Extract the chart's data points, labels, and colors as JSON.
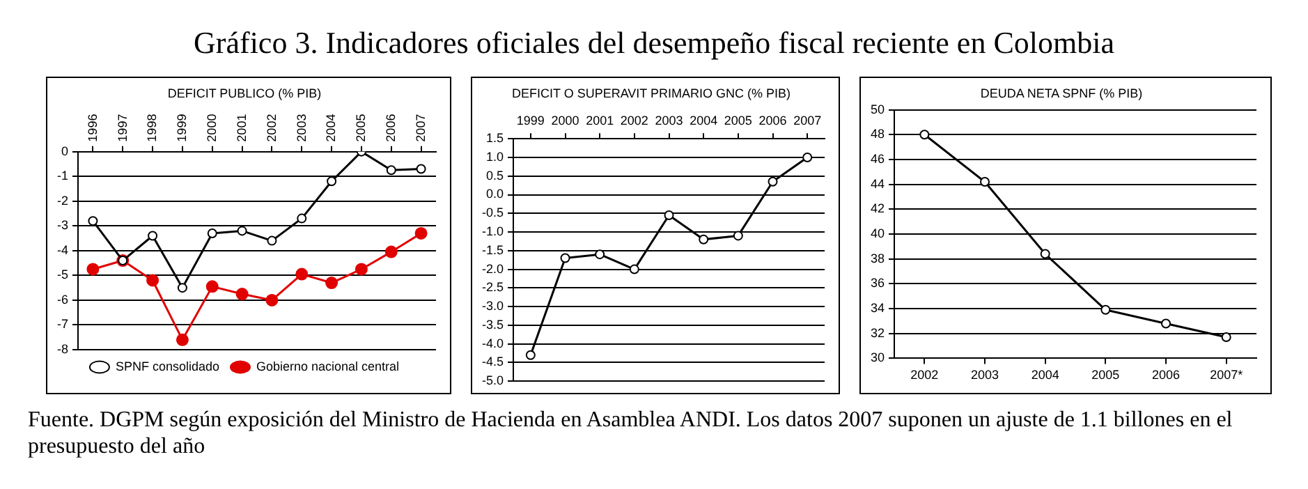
{
  "chart_data": [
    {
      "type": "line",
      "title": "DEFICIT PUBLICO (% PIB)",
      "annotations": [
        "Gráfico 3. Indicadores oficiales del desempeño fiscal reciente en Colombia",
        "Fuente. DGPM según exposición del Ministro de Hacienda en Asamblea ANDI. Los datos 2007 suponen un ajuste de 1.1 billones en el presupuesto del año"
      ],
      "categories": [
        "1996",
        "1997",
        "1998",
        "1999",
        "2000",
        "2001",
        "2002",
        "2003",
        "2004",
        "2005",
        "2006",
        "2007"
      ],
      "series": [
        {
          "name": "SPNF consolidado",
          "color": "#000000",
          "values": [
            -2.8,
            -4.4,
            -3.4,
            -5.5,
            -3.3,
            -3.2,
            -3.6,
            -2.7,
            -1.2,
            0.0,
            -0.75,
            -0.7
          ]
        },
        {
          "name": "Gobierno nacional central",
          "color": "#e00000",
          "values": [
            -4.75,
            -4.4,
            -5.2,
            -7.6,
            -5.45,
            -5.75,
            -6.0,
            -4.95,
            -5.3,
            -4.75,
            -4.05,
            -3.3
          ]
        }
      ],
      "ylim": [
        -8,
        0
      ],
      "yticks": [
        -8,
        -7,
        -6,
        -5,
        -4,
        -3,
        -2,
        -1,
        0
      ],
      "grid": "y",
      "legend": "bottom",
      "marker": "circle",
      "line_style": "solid"
    },
    {
      "type": "line",
      "title": "DEFICIT O SUPERAVIT PRIMARIO GNC (% PIB)",
      "categories": [
        "1999",
        "2000",
        "2001",
        "2002",
        "2003",
        "2004",
        "2005",
        "2006",
        "2007"
      ],
      "series": [
        {
          "color": "#000000",
          "values": [
            -4.3,
            -1.7,
            -1.6,
            -2.0,
            -0.55,
            -1.2,
            -1.1,
            0.35,
            1.0
          ]
        }
      ],
      "ylim": [
        -5,
        1.5
      ],
      "yticks": [
        {
          "value": -5,
          "label": "-5.0"
        },
        -4.5,
        {
          "value": -4,
          "label": "-4.0"
        },
        -3.5,
        {
          "value": -3,
          "label": "-3.0"
        },
        -2.5,
        {
          "value": -2,
          "label": "-2.0"
        },
        -1.5,
        {
          "value": -1,
          "label": "-1.0"
        },
        -0.5,
        {
          "value": 0,
          "label": "0.0"
        },
        0.5,
        {
          "value": 1,
          "label": "1.0"
        },
        1.5
      ],
      "grid": "y",
      "marker": "circle",
      "line_style": "solid"
    },
    {
      "type": "line",
      "title": "DEUDA NETA SPNF (% PIB)",
      "categories": [
        "2002",
        "2003",
        "2004",
        "2005",
        "2006",
        "2007*"
      ],
      "series": [
        {
          "color": "#000000",
          "values": [
            48,
            44.2,
            38.4,
            33.9,
            32.8,
            31.7
          ]
        }
      ],
      "ylim": [
        30,
        50
      ],
      "yticks": [
        30,
        32,
        34,
        36,
        38,
        40,
        42,
        44,
        46,
        48,
        50
      ],
      "grid": "y",
      "marker": "circle",
      "line_style": "solid"
    }
  ]
}
